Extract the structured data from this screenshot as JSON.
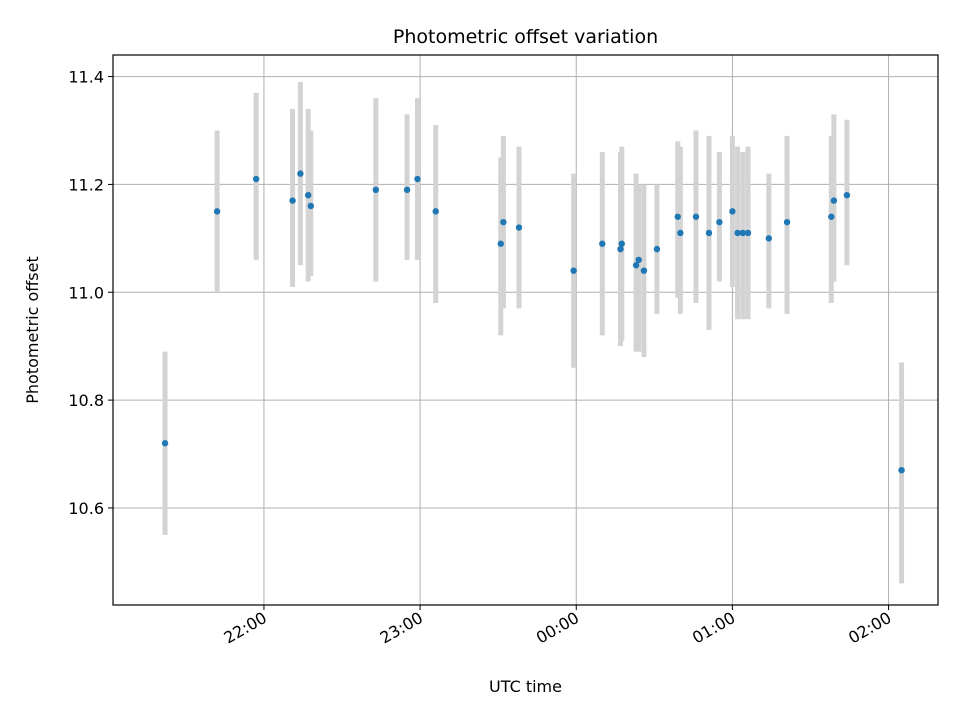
{
  "chart_data": {
    "type": "scatter",
    "title": "Photometric offset variation",
    "xlabel": "UTC time",
    "ylabel": "Photometric offset",
    "x_is_time": true,
    "x_reference_date": "2000-01-01",
    "xlim": [
      "2000-01-01T21:02:00",
      "2000-01-02T02:19:00"
    ],
    "ylim": [
      10.42,
      11.44
    ],
    "x_ticks": [
      {
        "t": "2000-01-01T22:00:00",
        "label": "22:00"
      },
      {
        "t": "2000-01-01T23:00:00",
        "label": "23:00"
      },
      {
        "t": "2000-01-02T00:00:00",
        "label": "00:00"
      },
      {
        "t": "2000-01-02T01:00:00",
        "label": "01:00"
      },
      {
        "t": "2000-01-02T02:00:00",
        "label": "02:00"
      }
    ],
    "y_ticks": [
      10.6,
      10.8,
      11.0,
      11.2,
      11.4
    ],
    "y_tick_labels": [
      "10.6",
      "10.8",
      "11.0",
      "11.2",
      "11.4"
    ],
    "grid": true,
    "colors": {
      "point": "#1f77b4",
      "errorbar": "#d3d3d3",
      "grid": "#b0b0b0",
      "axes": "#000000"
    },
    "points": [
      {
        "t": "2000-01-01T21:22:00",
        "y": 10.72,
        "lo": 10.55,
        "hi": 10.89
      },
      {
        "t": "2000-01-01T21:42:00",
        "y": 11.15,
        "lo": 11.0,
        "hi": 11.3
      },
      {
        "t": "2000-01-01T21:57:00",
        "y": 11.21,
        "lo": 11.06,
        "hi": 11.37
      },
      {
        "t": "2000-01-01T22:11:00",
        "y": 11.17,
        "lo": 11.01,
        "hi": 11.34
      },
      {
        "t": "2000-01-01T22:14:00",
        "y": 11.22,
        "lo": 11.05,
        "hi": 11.39
      },
      {
        "t": "2000-01-01T22:17:00",
        "y": 11.18,
        "lo": 11.02,
        "hi": 11.34
      },
      {
        "t": "2000-01-01T22:18:00",
        "y": 11.16,
        "lo": 11.03,
        "hi": 11.3
      },
      {
        "t": "2000-01-01T22:43:00",
        "y": 11.19,
        "lo": 11.02,
        "hi": 11.36
      },
      {
        "t": "2000-01-01T22:55:00",
        "y": 11.19,
        "lo": 11.06,
        "hi": 11.33
      },
      {
        "t": "2000-01-01T22:59:00",
        "y": 11.21,
        "lo": 11.06,
        "hi": 11.36
      },
      {
        "t": "2000-01-01T23:06:00",
        "y": 11.15,
        "lo": 10.98,
        "hi": 11.31
      },
      {
        "t": "2000-01-01T23:31:00",
        "y": 11.09,
        "lo": 10.92,
        "hi": 11.25
      },
      {
        "t": "2000-01-01T23:32:00",
        "y": 11.13,
        "lo": 10.97,
        "hi": 11.29
      },
      {
        "t": "2000-01-01T23:38:00",
        "y": 11.12,
        "lo": 10.97,
        "hi": 11.27
      },
      {
        "t": "2000-01-01T23:59:00",
        "y": 11.04,
        "lo": 10.86,
        "hi": 11.22
      },
      {
        "t": "2000-01-02T00:10:00",
        "y": 11.09,
        "lo": 10.92,
        "hi": 11.26
      },
      {
        "t": "2000-01-02T00:17:00",
        "y": 11.08,
        "lo": 10.9,
        "hi": 11.26
      },
      {
        "t": "2000-01-02T00:17:30",
        "y": 11.09,
        "lo": 10.91,
        "hi": 11.27
      },
      {
        "t": "2000-01-02T00:23:00",
        "y": 11.05,
        "lo": 10.89,
        "hi": 11.22
      },
      {
        "t": "2000-01-02T00:24:00",
        "y": 11.06,
        "lo": 10.89,
        "hi": 11.2
      },
      {
        "t": "2000-01-02T00:26:00",
        "y": 11.04,
        "lo": 10.88,
        "hi": 11.2
      },
      {
        "t": "2000-01-02T00:31:00",
        "y": 11.08,
        "lo": 10.96,
        "hi": 11.2
      },
      {
        "t": "2000-01-02T00:39:00",
        "y": 11.14,
        "lo": 10.99,
        "hi": 11.28
      },
      {
        "t": "2000-01-02T00:40:00",
        "y": 11.11,
        "lo": 10.96,
        "hi": 11.27
      },
      {
        "t": "2000-01-02T00:46:00",
        "y": 11.14,
        "lo": 10.98,
        "hi": 11.3
      },
      {
        "t": "2000-01-02T00:51:00",
        "y": 11.11,
        "lo": 10.93,
        "hi": 11.29
      },
      {
        "t": "2000-01-02T00:55:00",
        "y": 11.13,
        "lo": 11.02,
        "hi": 11.26
      },
      {
        "t": "2000-01-02T01:00:00",
        "y": 11.15,
        "lo": 11.01,
        "hi": 11.29
      },
      {
        "t": "2000-01-02T01:02:00",
        "y": 11.11,
        "lo": 10.95,
        "hi": 11.27
      },
      {
        "t": "2000-01-02T01:04:00",
        "y": 11.11,
        "lo": 10.95,
        "hi": 11.26
      },
      {
        "t": "2000-01-02T01:06:00",
        "y": 11.11,
        "lo": 10.95,
        "hi": 11.27
      },
      {
        "t": "2000-01-02T01:14:00",
        "y": 11.1,
        "lo": 10.97,
        "hi": 11.22
      },
      {
        "t": "2000-01-02T01:21:00",
        "y": 11.13,
        "lo": 10.96,
        "hi": 11.29
      },
      {
        "t": "2000-01-02T01:38:00",
        "y": 11.14,
        "lo": 10.98,
        "hi": 11.29
      },
      {
        "t": "2000-01-02T01:39:00",
        "y": 11.17,
        "lo": 11.02,
        "hi": 11.33
      },
      {
        "t": "2000-01-02T01:44:00",
        "y": 11.18,
        "lo": 11.05,
        "hi": 11.32
      },
      {
        "t": "2000-01-02T02:05:00",
        "y": 10.67,
        "lo": 10.46,
        "hi": 10.87
      }
    ]
  }
}
